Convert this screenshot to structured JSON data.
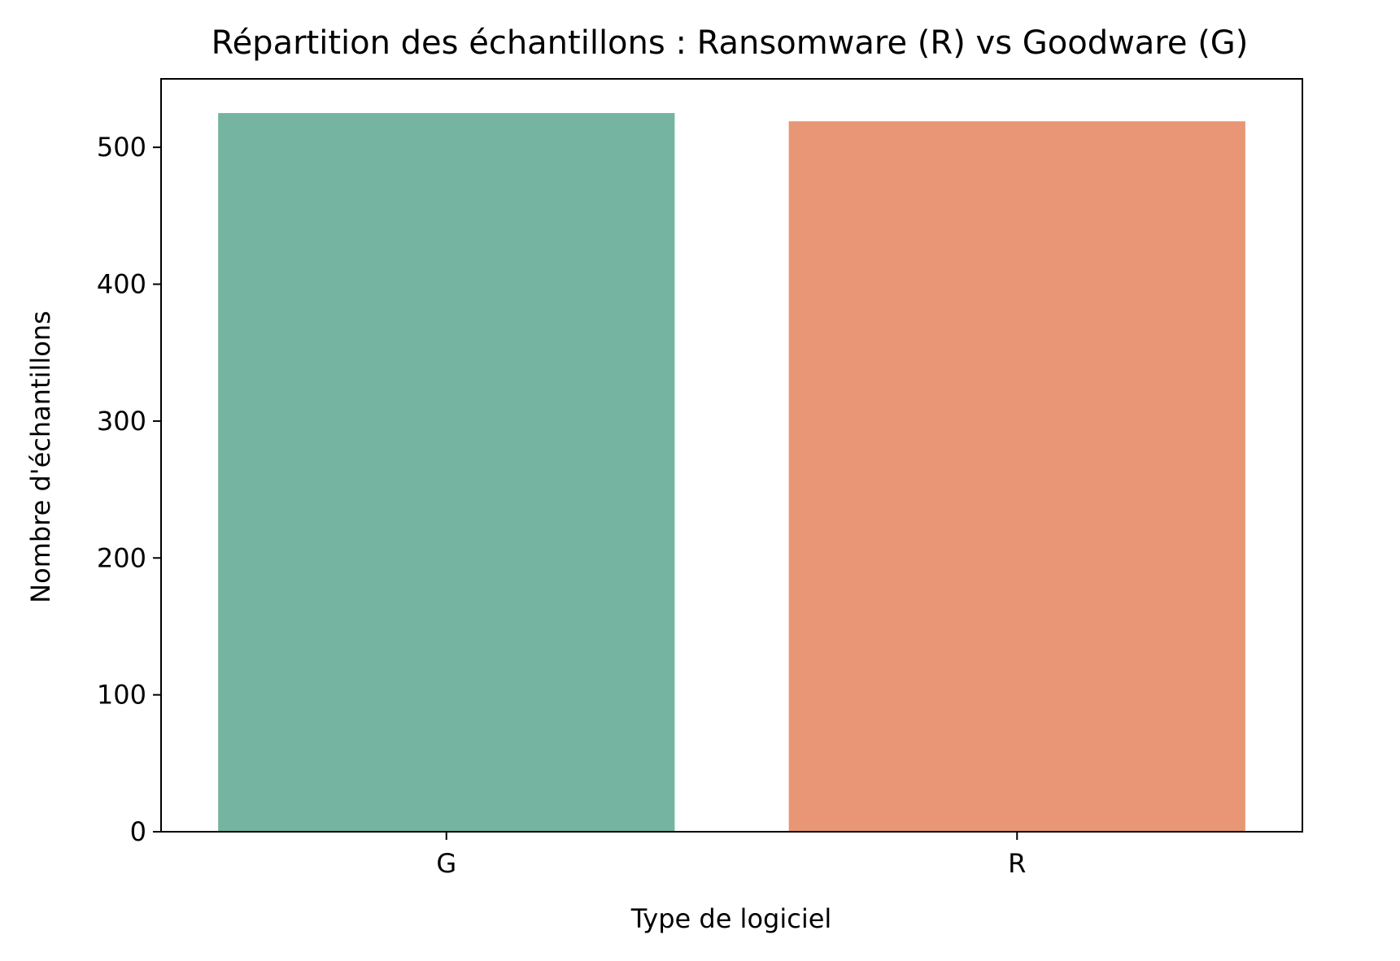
{
  "chart_data": {
    "type": "bar",
    "title": "Répartition des échantillons : Ransomware (R) vs Goodware (G)",
    "xlabel": "Type de logiciel",
    "ylabel": "Nombre d'échantillons",
    "categories": [
      "G",
      "R"
    ],
    "values": [
      525,
      519
    ],
    "colors": [
      "#74b4a0",
      "#e89675"
    ],
    "ylim": [
      0,
      550
    ],
    "yticks": [
      0,
      100,
      200,
      300,
      400,
      500
    ],
    "grid": false,
    "legend": "none"
  }
}
